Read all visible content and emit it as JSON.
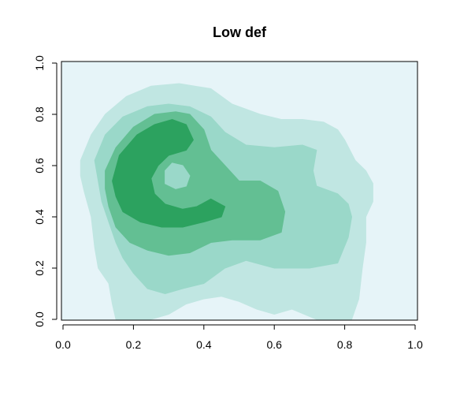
{
  "chart_data": {
    "type": "heatmap",
    "title": "Low def",
    "xlabel": "",
    "ylabel": "",
    "xlim": [
      0,
      1
    ],
    "ylim": [
      0,
      1
    ],
    "x_ticks": [
      "0.0",
      "0.2",
      "0.4",
      "0.6",
      "0.8",
      "1.0"
    ],
    "y_ticks": [
      "0.0",
      "0.2",
      "0.4",
      "0.6",
      "0.8",
      "1.0"
    ],
    "levels": [
      "#e6f4f8",
      "#c0e6e2",
      "#9ad8c9",
      "#63bf93",
      "#2ca25f"
    ],
    "regions": [
      {
        "level": 1,
        "points": [
          [
            0.05,
            0.62
          ],
          [
            0.08,
            0.72
          ],
          [
            0.12,
            0.8
          ],
          [
            0.18,
            0.87
          ],
          [
            0.25,
            0.91
          ],
          [
            0.33,
            0.92
          ],
          [
            0.42,
            0.9
          ],
          [
            0.48,
            0.84
          ],
          [
            0.56,
            0.8
          ],
          [
            0.62,
            0.78
          ],
          [
            0.68,
            0.78
          ],
          [
            0.74,
            0.77
          ],
          [
            0.78,
            0.74
          ],
          [
            0.8,
            0.7
          ],
          [
            0.83,
            0.62
          ],
          [
            0.86,
            0.58
          ],
          [
            0.88,
            0.53
          ],
          [
            0.88,
            0.46
          ],
          [
            0.86,
            0.4
          ],
          [
            0.86,
            0.3
          ],
          [
            0.85,
            0.2
          ],
          [
            0.84,
            0.08
          ],
          [
            0.82,
            0.0
          ],
          [
            0.72,
            0.0
          ],
          [
            0.65,
            0.04
          ],
          [
            0.6,
            0.02
          ],
          [
            0.55,
            0.04
          ],
          [
            0.5,
            0.07
          ],
          [
            0.45,
            0.09
          ],
          [
            0.4,
            0.08
          ],
          [
            0.35,
            0.06
          ],
          [
            0.3,
            0.02
          ],
          [
            0.25,
            0.0
          ],
          [
            0.15,
            0.0
          ],
          [
            0.14,
            0.06
          ],
          [
            0.13,
            0.14
          ],
          [
            0.1,
            0.2
          ],
          [
            0.09,
            0.28
          ],
          [
            0.08,
            0.4
          ],
          [
            0.06,
            0.5
          ],
          [
            0.05,
            0.56
          ]
        ]
      },
      {
        "level": 2,
        "points": [
          [
            0.09,
            0.62
          ],
          [
            0.12,
            0.72
          ],
          [
            0.17,
            0.79
          ],
          [
            0.24,
            0.83
          ],
          [
            0.3,
            0.84
          ],
          [
            0.36,
            0.83
          ],
          [
            0.42,
            0.79
          ],
          [
            0.46,
            0.73
          ],
          [
            0.52,
            0.68
          ],
          [
            0.6,
            0.67
          ],
          [
            0.68,
            0.68
          ],
          [
            0.72,
            0.66
          ],
          [
            0.71,
            0.58
          ],
          [
            0.72,
            0.52
          ],
          [
            0.78,
            0.49
          ],
          [
            0.81,
            0.45
          ],
          [
            0.82,
            0.4
          ],
          [
            0.81,
            0.32
          ],
          [
            0.78,
            0.22
          ],
          [
            0.7,
            0.2
          ],
          [
            0.6,
            0.2
          ],
          [
            0.52,
            0.23
          ],
          [
            0.46,
            0.2
          ],
          [
            0.4,
            0.14
          ],
          [
            0.34,
            0.12
          ],
          [
            0.29,
            0.1
          ],
          [
            0.24,
            0.12
          ],
          [
            0.2,
            0.18
          ],
          [
            0.17,
            0.24
          ],
          [
            0.15,
            0.3
          ],
          [
            0.13,
            0.38
          ],
          [
            0.11,
            0.46
          ],
          [
            0.1,
            0.54
          ]
        ]
      },
      {
        "level": 3,
        "points": [
          [
            0.12,
            0.58
          ],
          [
            0.15,
            0.67
          ],
          [
            0.2,
            0.75
          ],
          [
            0.26,
            0.8
          ],
          [
            0.32,
            0.81
          ],
          [
            0.36,
            0.8
          ],
          [
            0.4,
            0.74
          ],
          [
            0.42,
            0.66
          ],
          [
            0.46,
            0.6
          ],
          [
            0.5,
            0.54
          ],
          [
            0.56,
            0.54
          ],
          [
            0.61,
            0.5
          ],
          [
            0.63,
            0.42
          ],
          [
            0.62,
            0.34
          ],
          [
            0.56,
            0.31
          ],
          [
            0.48,
            0.31
          ],
          [
            0.42,
            0.3
          ],
          [
            0.36,
            0.26
          ],
          [
            0.3,
            0.25
          ],
          [
            0.24,
            0.27
          ],
          [
            0.19,
            0.3
          ],
          [
            0.15,
            0.36
          ],
          [
            0.13,
            0.44
          ],
          [
            0.12,
            0.51
          ]
        ]
      },
      {
        "level": 4,
        "points": [
          [
            0.14,
            0.54
          ],
          [
            0.16,
            0.64
          ],
          [
            0.21,
            0.72
          ],
          [
            0.26,
            0.76
          ],
          [
            0.31,
            0.78
          ],
          [
            0.35,
            0.76
          ],
          [
            0.37,
            0.7
          ],
          [
            0.35,
            0.66
          ],
          [
            0.3,
            0.64
          ],
          [
            0.27,
            0.6
          ],
          [
            0.25,
            0.55
          ],
          [
            0.26,
            0.49
          ],
          [
            0.29,
            0.45
          ],
          [
            0.34,
            0.43
          ],
          [
            0.38,
            0.44
          ],
          [
            0.42,
            0.47
          ],
          [
            0.46,
            0.44
          ],
          [
            0.45,
            0.4
          ],
          [
            0.4,
            0.38
          ],
          [
            0.34,
            0.36
          ],
          [
            0.28,
            0.36
          ],
          [
            0.22,
            0.38
          ],
          [
            0.17,
            0.42
          ],
          [
            0.15,
            0.48
          ]
        ]
      },
      {
        "level": 2,
        "points": [
          [
            0.31,
            0.61
          ],
          [
            0.34,
            0.6
          ],
          [
            0.36,
            0.56
          ],
          [
            0.35,
            0.52
          ],
          [
            0.32,
            0.51
          ],
          [
            0.29,
            0.53
          ],
          [
            0.29,
            0.58
          ]
        ]
      }
    ]
  }
}
